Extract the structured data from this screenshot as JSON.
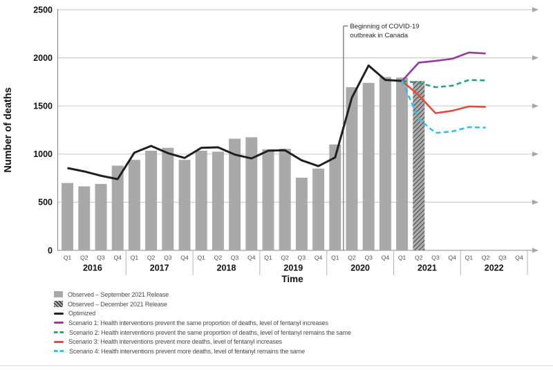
{
  "chart_data": {
    "type": "bar+line",
    "title": "",
    "ylabel": "Number of deaths",
    "xlabel": "Time",
    "ylim": [
      0,
      2500
    ],
    "yticks": [
      0,
      500,
      1000,
      1500,
      2000,
      2500
    ],
    "grid": true,
    "years": [
      "2016",
      "2017",
      "2018",
      "2019",
      "2020",
      "2021",
      "2022"
    ],
    "quarters": [
      "Q1",
      "Q2",
      "Q3",
      "Q4"
    ],
    "annotation": {
      "lines": [
        "Beginning of COVID-19",
        "outbreak in Canada"
      ],
      "between_quarter_indices": [
        16,
        17
      ],
      "top_value": 2330
    },
    "series": [
      {
        "name": "Observed – September 2021 Release",
        "type": "bar",
        "color": "#a9a9a9",
        "values": [
          700,
          665,
          690,
          880,
          940,
          1035,
          1065,
          940,
          1035,
          1025,
          1160,
          1175,
          1050,
          1055,
          755,
          850,
          1100,
          1695,
          1740,
          1800,
          1795,
          null,
          null,
          null,
          null,
          null,
          null,
          null
        ]
      },
      {
        "name": "Observed – December 2021 Release",
        "type": "bar-hatched",
        "color": "#ababab",
        "hatch_color": "#2b2b2b",
        "values": [
          null,
          null,
          null,
          null,
          null,
          null,
          null,
          null,
          null,
          null,
          null,
          null,
          null,
          null,
          null,
          null,
          null,
          null,
          null,
          null,
          null,
          1760,
          null,
          null,
          null,
          null,
          null,
          null
        ]
      },
      {
        "name": "Optimized",
        "type": "line",
        "color": "#1f1f1f",
        "width": 3,
        "dash": false,
        "values": [
          855,
          820,
          775,
          740,
          1015,
          1085,
          1010,
          960,
          1065,
          1070,
          995,
          955,
          1035,
          1040,
          935,
          875,
          965,
          1585,
          1920,
          1770,
          1760,
          null,
          null,
          null,
          null,
          null,
          null,
          null
        ]
      },
      {
        "name": "Scenario 1: Health interventions prevent the same proportion of deaths, level of fentanyl increases",
        "type": "line",
        "color": "#933a9b",
        "width": 2.6,
        "dash": false,
        "values": [
          null,
          null,
          null,
          null,
          null,
          null,
          null,
          null,
          null,
          null,
          null,
          null,
          null,
          null,
          null,
          null,
          null,
          null,
          null,
          null,
          1760,
          1950,
          1968,
          1990,
          2055,
          2045,
          null,
          null
        ]
      },
      {
        "name": "Scenario 2: Health interventions prevent the same proportion of deaths, level of fentanyl remains the same",
        "type": "line",
        "color": "#2d9e7f",
        "width": 2.6,
        "dash": true,
        "values": [
          null,
          null,
          null,
          null,
          null,
          null,
          null,
          null,
          null,
          null,
          null,
          null,
          null,
          null,
          null,
          null,
          null,
          null,
          null,
          null,
          1760,
          1740,
          1695,
          1710,
          1770,
          1765,
          null,
          null
        ]
      },
      {
        "name": "Scenario 3: Health interventions prevent more deaths, level of fentanyl increases",
        "type": "line",
        "color": "#e74a3a",
        "width": 2.6,
        "dash": false,
        "values": [
          null,
          null,
          null,
          null,
          null,
          null,
          null,
          null,
          null,
          null,
          null,
          null,
          null,
          null,
          null,
          null,
          null,
          null,
          null,
          null,
          1760,
          1610,
          1425,
          1450,
          1495,
          1490,
          null,
          null
        ]
      },
      {
        "name": "Scenario 4: Health interventions prevent more deaths, level of fentanyl remains the same",
        "type": "line",
        "color": "#2fc1e5",
        "width": 2.6,
        "dash": true,
        "values": [
          null,
          null,
          null,
          null,
          null,
          null,
          null,
          null,
          null,
          null,
          null,
          null,
          null,
          null,
          null,
          null,
          null,
          null,
          null,
          null,
          1760,
          1365,
          1220,
          1235,
          1280,
          1275,
          null,
          null
        ]
      }
    ],
    "colors": {
      "gridline": "#cccccc",
      "axis": "#8c8c8c",
      "arrow": "#a6a6a6",
      "tick_label": "#111111",
      "quarter_label": "#4d4d4d",
      "year_label": "#111111",
      "year_separator": "#b3b3b3",
      "annotation_line": "#4d4d4d",
      "annotation_text": "#262626"
    }
  }
}
